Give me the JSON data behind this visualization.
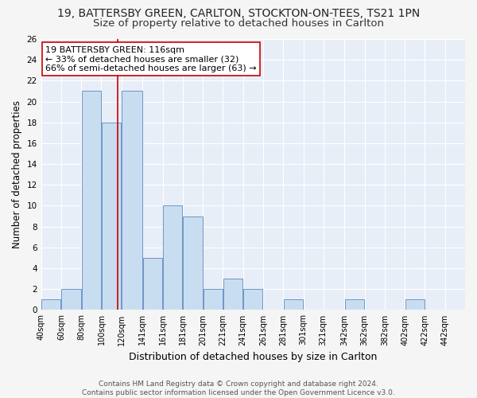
{
  "title": "19, BATTERSBY GREEN, CARLTON, STOCKTON-ON-TEES, TS21 1PN",
  "subtitle": "Size of property relative to detached houses in Carlton",
  "xlabel": "Distribution of detached houses by size in Carlton",
  "ylabel": "Number of detached properties",
  "footnote1": "Contains HM Land Registry data © Crown copyright and database right 2024.",
  "footnote2": "Contains public sector information licensed under the Open Government Licence v3.0.",
  "annotation_line1": "19 BATTERSBY GREEN: 116sqm",
  "annotation_line2": "← 33% of detached houses are smaller (32)",
  "annotation_line3": "66% of semi-detached houses are larger (63) →",
  "bar_left_edges": [
    40,
    60,
    80,
    100,
    120,
    141,
    161,
    181,
    201,
    221,
    241,
    261,
    281,
    301,
    321,
    342,
    362,
    382,
    402,
    422
  ],
  "bar_heights": [
    1,
    2,
    21,
    18,
    21,
    5,
    10,
    9,
    2,
    3,
    2,
    0,
    1,
    0,
    0,
    1,
    0,
    0,
    1,
    0
  ],
  "bar_widths": [
    20,
    20,
    20,
    20,
    21,
    20,
    20,
    20,
    20,
    20,
    20,
    20,
    20,
    20,
    21,
    20,
    20,
    20,
    20,
    20
  ],
  "tick_labels": [
    "40sqm",
    "60sqm",
    "80sqm",
    "100sqm",
    "120sqm",
    "141sqm",
    "161sqm",
    "181sqm",
    "201sqm",
    "221sqm",
    "241sqm",
    "261sqm",
    "281sqm",
    "301sqm",
    "321sqm",
    "342sqm",
    "362sqm",
    "382sqm",
    "402sqm",
    "422sqm",
    "442sqm"
  ],
  "tick_positions": [
    40,
    60,
    80,
    100,
    120,
    141,
    161,
    181,
    201,
    221,
    241,
    261,
    281,
    301,
    321,
    342,
    362,
    382,
    402,
    422,
    442
  ],
  "bar_color": "#c9ddf0",
  "bar_edge_color": "#5a8abf",
  "vline_x": 116,
  "vline_color": "#cc0000",
  "annotation_box_edge_color": "#cc0000",
  "ylim": [
    0,
    26
  ],
  "xlim": [
    40,
    462
  ],
  "bg_color": "#e8eef8",
  "grid_color": "#ffffff",
  "title_fontsize": 10,
  "subtitle_fontsize": 9.5,
  "axis_label_fontsize": 8.5,
  "tick_fontsize": 7,
  "annotation_fontsize": 8,
  "footnote_fontsize": 6.5,
  "fig_facecolor": "#f5f5f5"
}
